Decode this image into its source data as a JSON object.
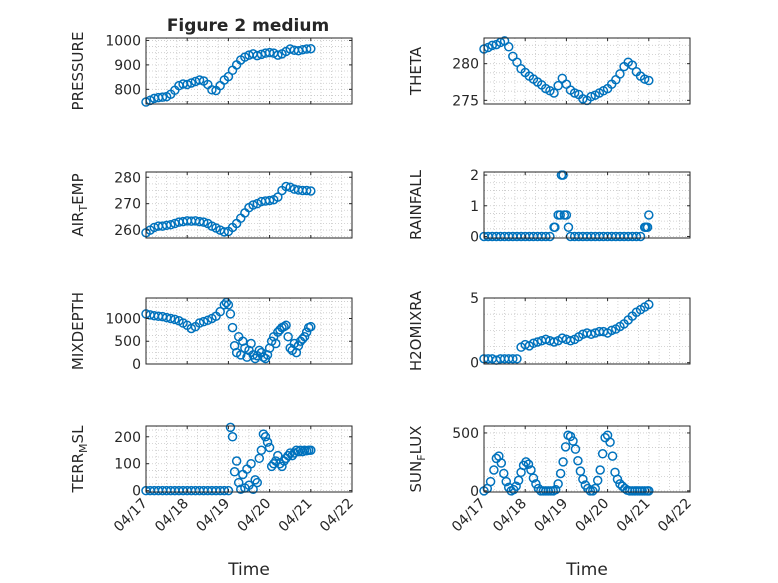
{
  "figure": {
    "title": "Figure 2 medium",
    "marker_color": "#0072BD"
  },
  "chart_data": [
    {
      "type": "scatter",
      "ylabel": "PRESSURE",
      "xlabel": "",
      "title": "Figure 2 medium",
      "xlim": [
        0,
        5
      ],
      "ylim": [
        740,
        1010
      ],
      "yticks": [
        800,
        900,
        1000
      ],
      "ytick_labels": [
        "800",
        "900",
        "1000"
      ],
      "xticks": [
        0,
        1,
        2,
        3,
        4,
        5
      ],
      "xtick_labels": [
        "04/17",
        "04/18",
        "04/19",
        "04/20",
        "04/21",
        "04/22"
      ],
      "show_xtick_labels": false,
      "grid": true,
      "x": [
        0.0,
        0.1,
        0.2,
        0.3,
        0.4,
        0.5,
        0.6,
        0.7,
        0.8,
        0.9,
        1.0,
        1.1,
        1.2,
        1.3,
        1.4,
        1.5,
        1.6,
        1.7,
        1.8,
        1.9,
        2.0,
        2.1,
        2.2,
        2.3,
        2.4,
        2.5,
        2.6,
        2.7,
        2.8,
        2.9,
        3.0,
        3.1,
        3.2,
        3.3,
        3.4,
        3.5,
        3.6,
        3.7,
        3.8,
        3.9,
        4.0
      ],
      "y": [
        748,
        755,
        763,
        766,
        768,
        770,
        780,
        796,
        815,
        822,
        820,
        826,
        832,
        838,
        834,
        820,
        798,
        795,
        815,
        838,
        852,
        878,
        900,
        920,
        932,
        940,
        945,
        938,
        943,
        948,
        950,
        948,
        940,
        945,
        955,
        965,
        960,
        958,
        962,
        965,
        966
      ]
    },
    {
      "type": "scatter",
      "ylabel": "THETA",
      "xlabel": "",
      "xlim": [
        0,
        5
      ],
      "ylim": [
        274.5,
        283.5
      ],
      "yticks": [
        275,
        280
      ],
      "ytick_labels": [
        "275",
        "280"
      ],
      "xticks": [
        0,
        1,
        2,
        3,
        4,
        5
      ],
      "xtick_labels": [
        "04/17",
        "04/18",
        "04/19",
        "04/20",
        "04/21",
        "04/22"
      ],
      "show_xtick_labels": false,
      "grid": true,
      "x": [
        0.0,
        0.1,
        0.2,
        0.3,
        0.4,
        0.5,
        0.6,
        0.7,
        0.8,
        0.9,
        1.0,
        1.1,
        1.2,
        1.3,
        1.4,
        1.5,
        1.6,
        1.7,
        1.8,
        1.9,
        2.0,
        2.1,
        2.2,
        2.3,
        2.4,
        2.5,
        2.6,
        2.7,
        2.8,
        2.9,
        3.0,
        3.1,
        3.2,
        3.3,
        3.4,
        3.5,
        3.6,
        3.7,
        3.8,
        3.9,
        4.0
      ],
      "y": [
        282.0,
        282.2,
        282.5,
        282.6,
        282.9,
        283.1,
        282.3,
        281.0,
        280.2,
        279.3,
        278.8,
        278.3,
        277.9,
        277.5,
        277.1,
        276.6,
        276.3,
        276.0,
        277.0,
        278.0,
        277.2,
        276.4,
        276.0,
        275.8,
        275.2,
        275.0,
        275.5,
        275.7,
        276.0,
        276.3,
        276.6,
        277.2,
        277.8,
        278.6,
        279.6,
        280.2,
        279.8,
        278.9,
        278.3,
        277.9,
        277.7
      ]
    },
    {
      "type": "scatter",
      "ylabel": "AIR_TEMP",
      "xlabel": "",
      "xlim": [
        0,
        5
      ],
      "ylim": [
        257,
        282
      ],
      "yticks": [
        260,
        270,
        280
      ],
      "ytick_labels": [
        "260",
        "270",
        "280"
      ],
      "xticks": [
        0,
        1,
        2,
        3,
        4,
        5
      ],
      "xtick_labels": [
        "04/17",
        "04/18",
        "04/19",
        "04/20",
        "04/21",
        "04/22"
      ],
      "show_xtick_labels": false,
      "grid": true,
      "x": [
        0.0,
        0.1,
        0.2,
        0.3,
        0.4,
        0.5,
        0.6,
        0.7,
        0.8,
        0.9,
        1.0,
        1.1,
        1.2,
        1.3,
        1.4,
        1.5,
        1.6,
        1.7,
        1.8,
        1.9,
        2.0,
        2.1,
        2.2,
        2.3,
        2.4,
        2.5,
        2.6,
        2.7,
        2.8,
        2.9,
        3.0,
        3.1,
        3.2,
        3.3,
        3.4,
        3.5,
        3.6,
        3.7,
        3.8,
        3.9,
        4.0
      ],
      "y": [
        259.0,
        260.0,
        261.0,
        261.5,
        261.5,
        261.8,
        262.0,
        262.5,
        263.0,
        263.2,
        263.5,
        263.4,
        263.5,
        263.2,
        263.0,
        262.5,
        261.5,
        260.8,
        260.0,
        259.3,
        259.5,
        261.0,
        262.5,
        264.5,
        266.5,
        268.5,
        269.5,
        270.0,
        270.8,
        271.0,
        271.2,
        271.5,
        272.5,
        275.0,
        276.5,
        276.2,
        275.5,
        275.2,
        275.0,
        275.0,
        274.8
      ]
    },
    {
      "type": "scatter",
      "ylabel": "RAINFALL",
      "xlabel": "",
      "xlim": [
        0,
        5
      ],
      "ylim": [
        -0.05,
        2.1
      ],
      "yticks": [
        0,
        1,
        2
      ],
      "ytick_labels": [
        "0",
        "1",
        "2"
      ],
      "xticks": [
        0,
        1,
        2,
        3,
        4,
        5
      ],
      "xtick_labels": [
        "04/17",
        "04/18",
        "04/19",
        "04/20",
        "04/21",
        "04/22"
      ],
      "show_xtick_labels": false,
      "grid": true,
      "x": [
        0.0,
        0.1,
        0.2,
        0.3,
        0.4,
        0.5,
        0.6,
        0.7,
        0.8,
        0.9,
        1.0,
        1.1,
        1.2,
        1.3,
        1.4,
        1.5,
        1.6,
        1.7,
        1.72,
        1.8,
        1.85,
        1.88,
        1.92,
        1.95,
        2.0,
        2.05,
        2.1,
        2.2,
        2.3,
        2.4,
        2.5,
        2.6,
        2.7,
        2.8,
        2.9,
        3.0,
        3.1,
        3.2,
        3.3,
        3.4,
        3.5,
        3.6,
        3.7,
        3.8,
        3.9,
        3.93,
        3.97,
        4.0
      ],
      "y": [
        0,
        0,
        0,
        0,
        0,
        0,
        0,
        0,
        0,
        0,
        0,
        0,
        0,
        0,
        0,
        0,
        0,
        0.3,
        0.3,
        0.7,
        0.7,
        2.0,
        2.0,
        0.7,
        0.7,
        0.3,
        0,
        0,
        0,
        0,
        0,
        0,
        0,
        0,
        0,
        0,
        0,
        0,
        0,
        0,
        0,
        0,
        0,
        0,
        0.3,
        0.3,
        0.3,
        0.7
      ]
    },
    {
      "type": "scatter",
      "ylabel": "MIXDEPTH",
      "xlabel": "",
      "xlim": [
        0,
        5
      ],
      "ylim": [
        0,
        1450
      ],
      "yticks": [
        0,
        500,
        1000
      ],
      "ytick_labels": [
        "0",
        "500",
        "1000"
      ],
      "xticks": [
        0,
        1,
        2,
        3,
        4,
        5
      ],
      "xtick_labels": [
        "04/17",
        "04/18",
        "04/19",
        "04/20",
        "04/21",
        "04/22"
      ],
      "show_xtick_labels": false,
      "grid": true,
      "x": [
        0.0,
        0.1,
        0.2,
        0.3,
        0.4,
        0.5,
        0.6,
        0.7,
        0.8,
        0.9,
        1.0,
        1.1,
        1.2,
        1.3,
        1.4,
        1.5,
        1.6,
        1.7,
        1.8,
        1.9,
        1.95,
        2.0,
        2.05,
        2.1,
        2.15,
        2.2,
        2.25,
        2.3,
        2.35,
        2.4,
        2.45,
        2.5,
        2.55,
        2.6,
        2.65,
        2.7,
        2.75,
        2.8,
        2.85,
        2.9,
        2.95,
        3.0,
        3.05,
        3.1,
        3.15,
        3.2,
        3.25,
        3.3,
        3.35,
        3.4,
        3.45,
        3.5,
        3.55,
        3.6,
        3.65,
        3.7,
        3.75,
        3.8,
        3.85,
        3.9,
        3.95,
        4.0
      ],
      "y": [
        1100,
        1080,
        1060,
        1050,
        1040,
        1020,
        1000,
        980,
        950,
        900,
        850,
        780,
        820,
        900,
        930,
        960,
        1000,
        1050,
        1150,
        1300,
        1350,
        1300,
        1100,
        800,
        400,
        250,
        600,
        200,
        500,
        350,
        150,
        300,
        450,
        200,
        120,
        180,
        300,
        250,
        150,
        120,
        200,
        350,
        500,
        600,
        450,
        700,
        750,
        800,
        820,
        850,
        600,
        350,
        300,
        450,
        250,
        400,
        500,
        550,
        600,
        700,
        800,
        820
      ]
    },
    {
      "type": "scatter",
      "ylabel": "H2OMIXRA",
      "xlabel": "",
      "xlim": [
        0,
        5
      ],
      "ylim": [
        -0.1,
        5.0
      ],
      "yticks": [
        0,
        5
      ],
      "ytick_labels": [
        "0",
        "5"
      ],
      "xticks": [
        0,
        1,
        2,
        3,
        4,
        5
      ],
      "xtick_labels": [
        "04/17",
        "04/18",
        "04/19",
        "04/20",
        "04/21",
        "04/22"
      ],
      "show_xtick_labels": false,
      "grid": true,
      "x": [
        0.0,
        0.1,
        0.2,
        0.3,
        0.4,
        0.5,
        0.6,
        0.7,
        0.8,
        0.9,
        1.0,
        1.1,
        1.2,
        1.3,
        1.4,
        1.5,
        1.6,
        1.7,
        1.8,
        1.9,
        2.0,
        2.1,
        2.2,
        2.3,
        2.4,
        2.5,
        2.6,
        2.7,
        2.8,
        2.9,
        3.0,
        3.1,
        3.2,
        3.3,
        3.4,
        3.5,
        3.6,
        3.7,
        3.8,
        3.9,
        4.0
      ],
      "y": [
        0.3,
        0.3,
        0.3,
        0.2,
        0.3,
        0.3,
        0.3,
        0.3,
        0.3,
        1.2,
        1.4,
        1.3,
        1.5,
        1.6,
        1.7,
        1.8,
        1.7,
        1.6,
        1.7,
        1.9,
        1.8,
        1.7,
        1.8,
        2.0,
        2.2,
        2.3,
        2.2,
        2.3,
        2.4,
        2.4,
        2.3,
        2.5,
        2.6,
        2.8,
        3.0,
        3.3,
        3.6,
        3.9,
        4.1,
        4.3,
        4.5
      ]
    },
    {
      "type": "scatter",
      "ylabel": "TERR_MSL",
      "xlabel": "Time",
      "xlim": [
        0,
        5
      ],
      "ylim": [
        -5,
        240
      ],
      "yticks": [
        0,
        100,
        200
      ],
      "ytick_labels": [
        "0",
        "100",
        "200"
      ],
      "xticks": [
        0,
        1,
        2,
        3,
        4,
        5
      ],
      "xtick_labels": [
        "04/17",
        "04/18",
        "04/19",
        "04/20",
        "04/21",
        "04/22"
      ],
      "show_xtick_labels": true,
      "grid": true,
      "x": [
        0.0,
        0.1,
        0.2,
        0.3,
        0.4,
        0.5,
        0.6,
        0.7,
        0.8,
        0.9,
        1.0,
        1.1,
        1.2,
        1.3,
        1.4,
        1.5,
        1.6,
        1.7,
        1.8,
        1.9,
        2.0,
        2.05,
        2.1,
        2.15,
        2.2,
        2.25,
        2.3,
        2.35,
        2.4,
        2.45,
        2.5,
        2.55,
        2.6,
        2.65,
        2.7,
        2.75,
        2.8,
        2.85,
        2.9,
        2.95,
        3.0,
        3.05,
        3.1,
        3.15,
        3.2,
        3.25,
        3.3,
        3.35,
        3.4,
        3.45,
        3.5,
        3.55,
        3.6,
        3.65,
        3.7,
        3.75,
        3.8,
        3.85,
        3.9,
        3.95,
        4.0
      ],
      "y": [
        0,
        0,
        0,
        0,
        0,
        0,
        0,
        0,
        0,
        0,
        0,
        0,
        0,
        0,
        0,
        0,
        0,
        0,
        0,
        0,
        0,
        235,
        200,
        70,
        110,
        30,
        5,
        60,
        10,
        80,
        20,
        100,
        5,
        40,
        30,
        120,
        150,
        210,
        200,
        180,
        160,
        90,
        100,
        110,
        130,
        100,
        90,
        110,
        120,
        130,
        140,
        130,
        140,
        150,
        145,
        150,
        145,
        150,
        148,
        150,
        150
      ]
    },
    {
      "type": "scatter",
      "ylabel": "SUN_FLUX",
      "xlabel": "Time",
      "xlim": [
        0,
        5
      ],
      "ylim": [
        -10,
        560
      ],
      "yticks": [
        0,
        500
      ],
      "ytick_labels": [
        "0",
        "500"
      ],
      "xticks": [
        0,
        1,
        2,
        3,
        4,
        5
      ],
      "xtick_labels": [
        "04/17",
        "04/18",
        "04/19",
        "04/20",
        "04/21",
        "04/22"
      ],
      "show_xtick_labels": true,
      "grid": true,
      "x": [
        0.0,
        0.08,
        0.16,
        0.24,
        0.3,
        0.36,
        0.42,
        0.48,
        0.54,
        0.6,
        0.66,
        0.72,
        0.78,
        0.84,
        0.9,
        0.96,
        1.02,
        1.08,
        1.14,
        1.2,
        1.26,
        1.32,
        1.38,
        1.44,
        1.5,
        1.56,
        1.62,
        1.68,
        1.74,
        1.8,
        1.86,
        1.92,
        1.98,
        2.04,
        2.1,
        2.16,
        2.22,
        2.28,
        2.34,
        2.4,
        2.46,
        2.52,
        2.58,
        2.64,
        2.7,
        2.76,
        2.82,
        2.88,
        2.94,
        3.0,
        3.06,
        3.12,
        3.18,
        3.24,
        3.3,
        3.36,
        3.42,
        3.48,
        3.54,
        3.6,
        3.66,
        3.72,
        3.78,
        3.84,
        3.9,
        3.96,
        4.0
      ],
      "y": [
        0,
        20,
        80,
        180,
        280,
        300,
        240,
        150,
        80,
        30,
        0,
        10,
        40,
        90,
        160,
        220,
        250,
        230,
        180,
        110,
        60,
        20,
        0,
        0,
        0,
        0,
        0,
        0,
        10,
        60,
        150,
        250,
        380,
        480,
        470,
        430,
        360,
        260,
        170,
        100,
        50,
        20,
        0,
        0,
        20,
        90,
        180,
        320,
        460,
        480,
        420,
        300,
        160,
        100,
        60,
        40,
        20,
        5,
        0,
        0,
        0,
        0,
        0,
        0,
        0,
        0,
        0
      ]
    }
  ]
}
